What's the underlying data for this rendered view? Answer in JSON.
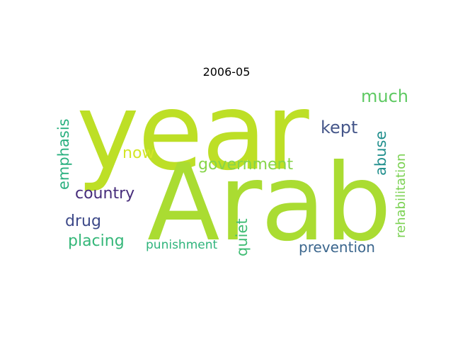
{
  "title": "2006-05",
  "words": {
    "year": {
      "text": "year",
      "color": "#bddf26",
      "weight": 1.0
    },
    "arab": {
      "text": "Arab",
      "color": "#aadc32",
      "weight": 1.0
    },
    "much": {
      "text": "much",
      "color": "#5ec962",
      "weight": 0.16
    },
    "kept": {
      "text": "kept",
      "color": "#46578a",
      "weight": 0.16
    },
    "now": {
      "text": "now",
      "color": "#d3e628",
      "weight": 0.15
    },
    "government": {
      "text": "government",
      "color": "#86d549",
      "weight": 0.15
    },
    "country": {
      "text": "country",
      "color": "#472d7b",
      "weight": 0.15
    },
    "drug": {
      "text": "drug",
      "color": "#3e4a89",
      "weight": 0.15
    },
    "placing": {
      "text": "placing",
      "color": "#35b779",
      "weight": 0.15
    },
    "punishment": {
      "text": "punishment",
      "color": "#2fb47c",
      "weight": 0.12
    },
    "prevention": {
      "text": "prevention",
      "color": "#3b668d",
      "weight": 0.13
    },
    "emphasis": {
      "text": "emphasis",
      "color": "#2ab07f",
      "weight": 0.14
    },
    "quiet": {
      "text": "quiet",
      "color": "#3fbc73",
      "weight": 0.14
    },
    "abuse": {
      "text": "abuse",
      "color": "#218f8d",
      "weight": 0.14
    },
    "rehabilitation": {
      "text": "rehabilitation",
      "color": "#7ad151",
      "weight": 0.12
    }
  }
}
